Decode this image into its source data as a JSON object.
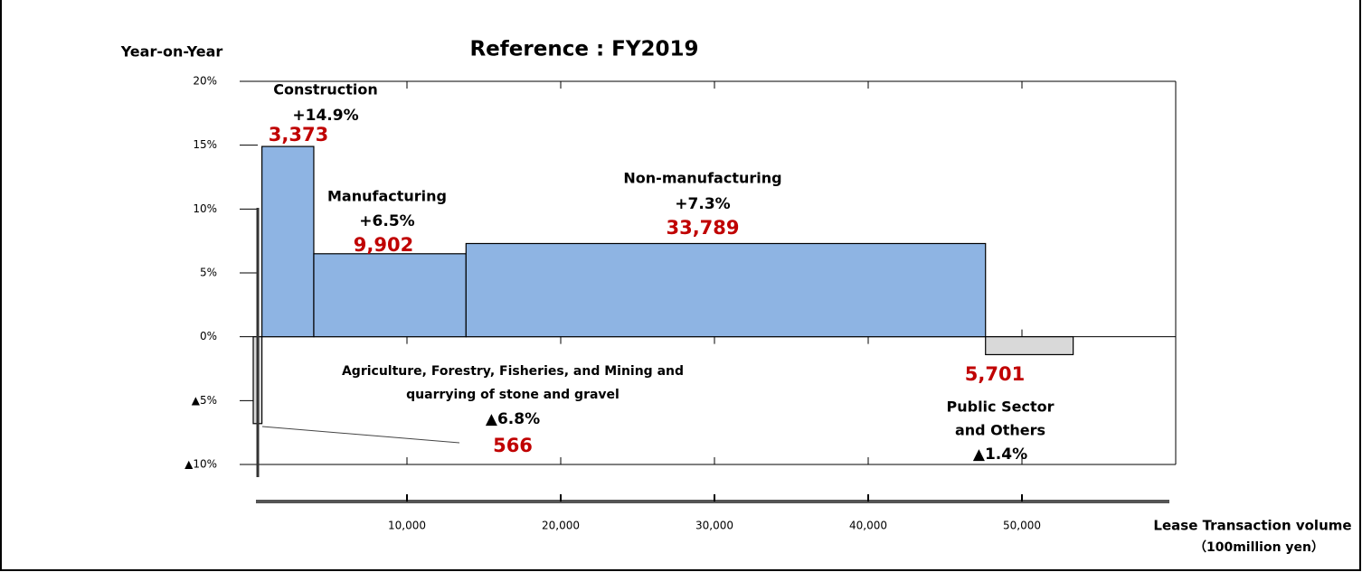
{
  "chart_data": {
    "type": "variwide",
    "title": "Reference : FY2019",
    "ylabel": "Year-on-Year",
    "xlabel": [
      "Lease Transaction volume",
      "（100million yen）"
    ],
    "categories": [
      [
        "Agriculture, Forestry, Fisheries, and Mining and",
        "quarrying of stone and gravel"
      ],
      [
        "Construction"
      ],
      [
        "Manufacturing"
      ],
      [
        "Non-manufacturing"
      ],
      [
        "Public Sector",
        "and Others"
      ]
    ],
    "widths": [
      566,
      3373,
      9902,
      33789,
      5701
    ],
    "width_labels": [
      "566",
      "3,373",
      "9,902",
      "33,789",
      "5,701"
    ],
    "values": [
      -6.8,
      14.9,
      6.5,
      7.3,
      -1.4
    ],
    "value_labels": [
      "▲6.8%",
      "+14.9%",
      "+6.5%",
      "+7.3%",
      "▲1.4%"
    ],
    "colors": [
      "#d9d9d9",
      "#8eb4e3",
      "#8eb4e3",
      "#8eb4e3",
      "#d9d9d9"
    ],
    "ylim": [
      -10,
      20
    ],
    "yticks": [
      {
        "value": 20,
        "label": "20%"
      },
      {
        "value": 15,
        "label": "15%"
      },
      {
        "value": 10,
        "label": "10%"
      },
      {
        "value": 5,
        "label": "5%"
      },
      {
        "value": 0,
        "label": "0%"
      },
      {
        "value": -5,
        "label": "▲5%"
      },
      {
        "value": -10,
        "label": "▲10%"
      }
    ],
    "xlim": [
      0,
      60000
    ],
    "xticks": [
      {
        "value": 10000,
        "label": "10,000"
      },
      {
        "value": 20000,
        "label": "20,000"
      },
      {
        "value": 30000,
        "label": "30,000"
      },
      {
        "value": 40000,
        "label": "40,000"
      },
      {
        "value": 50000,
        "label": "50,000"
      }
    ]
  }
}
